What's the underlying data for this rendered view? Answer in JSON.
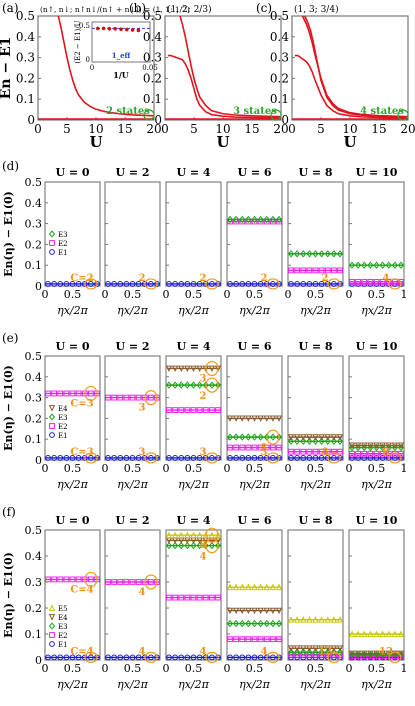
{
  "figure": {
    "rows": [
      {
        "panels": [
          "a",
          "b",
          "c"
        ]
      },
      {
        "panels": [
          "d"
        ]
      },
      {
        "panels": [
          "e"
        ]
      },
      {
        "panels": [
          "f"
        ]
      }
    ]
  },
  "colors": {
    "curve": "#e0141e",
    "E1": "#1a1acc",
    "E2": "#ee22ee",
    "E3": "#1aa51a",
    "E4": "#8b5a2b",
    "E5": "#c8c800",
    "circle": "#f59b1c",
    "count_label": "#2ba52b",
    "marker_label": "#f29318",
    "inset_point": "#cc1111",
    "inset_line": "#2244dd"
  },
  "chart_data": [
    {
      "panel": "a",
      "type": "line",
      "label": "(a)",
      "title": "(n↑, n↓; n↑n↓/(n↑ + n↓)) = (1, 1; 1/2)",
      "xlabel": "U",
      "ylabel": "En − E1",
      "xlim": [
        0,
        20
      ],
      "ylim": [
        0,
        0.5
      ],
      "xticks": [
        "0",
        "5",
        "10",
        "15",
        "20"
      ],
      "yticks": [
        "0",
        "0.1",
        "0.2",
        "0.3",
        "0.4",
        "0.5"
      ],
      "annotation": "2 states",
      "series": [
        {
          "x": [
            3.5,
            4.0,
            4.5,
            5.0,
            5.5,
            6.0,
            6.5,
            7.0,
            8.0,
            9.0,
            10.0,
            11.0,
            12.0,
            14.0,
            16.0,
            20.0
          ],
          "y": [
            0.5,
            0.44,
            0.37,
            0.3,
            0.24,
            0.19,
            0.15,
            0.12,
            0.085,
            0.065,
            0.052,
            0.044,
            0.038,
            0.03,
            0.025,
            0.02
          ]
        }
      ],
      "inset": {
        "xlabel": "1/U",
        "ylabel": "(E2 − E1)/U",
        "xlim": [
          0,
          0.05
        ],
        "ylim": [
          0,
          0.5
        ],
        "xticks": [
          "0",
          "0.05"
        ],
        "yticks": [
          "0",
          "0.5"
        ],
        "line_value": 0.42,
        "line_label": "1_eff",
        "x": [
          0.005,
          0.01,
          0.015,
          0.02,
          0.025,
          0.03,
          0.035,
          0.04
        ],
        "y": [
          0.42,
          0.42,
          0.415,
          0.415,
          0.41,
          0.405,
          0.4,
          0.395
        ]
      }
    },
    {
      "panel": "b",
      "type": "line",
      "label": "(b)",
      "title": "(1, 2; 2/3)",
      "xlabel": "U",
      "xlim": [
        0,
        20
      ],
      "ylim": [
        0,
        0.5
      ],
      "xticks": [
        "0",
        "5",
        "10",
        "15",
        "20"
      ],
      "yticks": [
        "0",
        "0.1",
        "0.2",
        "0.3",
        "0.4",
        "0.5"
      ],
      "annotation": "3 states",
      "series": [
        {
          "x": [
            2.6,
            3.0,
            3.5,
            4.0,
            4.5,
            5.0,
            5.5,
            6.0,
            7.0,
            8.0,
            10.0,
            12.0,
            15.0,
            20.0
          ],
          "y": [
            0.5,
            0.46,
            0.4,
            0.33,
            0.26,
            0.2,
            0.15,
            0.11,
            0.07,
            0.045,
            0.03,
            0.024,
            0.02,
            0.016
          ]
        },
        {
          "x": [
            0.5,
            1.0,
            2.0,
            3.0,
            3.5,
            4.0,
            4.5,
            5.0,
            5.5,
            6.0,
            7.0,
            8.0,
            10.0,
            12.0,
            15.0,
            20.0
          ],
          "y": [
            0.31,
            0.31,
            0.3,
            0.29,
            0.27,
            0.24,
            0.2,
            0.15,
            0.1,
            0.07,
            0.04,
            0.026,
            0.018,
            0.014,
            0.012,
            0.01
          ]
        }
      ]
    },
    {
      "panel": "c",
      "type": "line",
      "label": "(c)",
      "title": "(1, 3; 3/4)",
      "xlabel": "U",
      "xlim": [
        0,
        20
      ],
      "ylim": [
        0,
        0.5
      ],
      "xticks": [
        "0",
        "5",
        "10",
        "15",
        "20"
      ],
      "yticks": [
        "0",
        "0.1",
        "0.2",
        "0.3",
        "0.4",
        "0.5"
      ],
      "annotation": "4 states",
      "series": [
        {
          "x": [
            1.8,
            2.5,
            3.0,
            3.5,
            4.0,
            5.0,
            6.0,
            7.0,
            8.0,
            10.0,
            12.0,
            15.0,
            20.0
          ],
          "y": [
            0.5,
            0.46,
            0.42,
            0.37,
            0.31,
            0.2,
            0.12,
            0.08,
            0.055,
            0.035,
            0.027,
            0.021,
            0.016
          ]
        },
        {
          "x": [
            2.2,
            2.7,
            3.2,
            3.7,
            4.2,
            5.0,
            6.0,
            7.0,
            8.0,
            10.0,
            12.0,
            15.0,
            20.0
          ],
          "y": [
            0.5,
            0.47,
            0.43,
            0.37,
            0.3,
            0.19,
            0.11,
            0.07,
            0.048,
            0.03,
            0.023,
            0.018,
            0.014
          ]
        },
        {
          "x": [
            0.5,
            1.0,
            1.5,
            2.0,
            2.5,
            3.0,
            3.5,
            4.0,
            5.0,
            6.0,
            7.0,
            8.0,
            10.0,
            12.0,
            15.0,
            20.0
          ],
          "y": [
            0.31,
            0.31,
            0.3,
            0.29,
            0.28,
            0.26,
            0.23,
            0.19,
            0.12,
            0.07,
            0.045,
            0.03,
            0.02,
            0.015,
            0.012,
            0.01
          ]
        }
      ]
    },
    {
      "panel": "d",
      "type": "line",
      "label": "(d)",
      "ylabel": "En(η) − E1(0)",
      "xlabel": "ηx/2π",
      "ylim": [
        0,
        0.5
      ],
      "yticks": [
        "0",
        "0.1",
        "0.2",
        "0.3",
        "0.4",
        "0.5"
      ],
      "xticks": [
        "0",
        "0.5",
        "1"
      ],
      "legend": [
        "E3",
        "E2",
        "E1"
      ],
      "subpanels": [
        {
          "title": "U = 0",
          "levels": {
            "E1": 0.01,
            "E2": null,
            "E3": null
          },
          "chern": "C=2"
        },
        {
          "title": "U = 2",
          "levels": {
            "E1": 0.01,
            "E2": null,
            "E3": null
          },
          "chern": "2"
        },
        {
          "title": "U = 4",
          "levels": {
            "E1": 0.01,
            "E2": null,
            "E3": null
          },
          "chern": "2"
        },
        {
          "title": "U = 6",
          "levels": {
            "E1": 0.01,
            "E2": 0.31,
            "E3": 0.32
          },
          "chern": "2"
        },
        {
          "title": "U = 8",
          "levels": {
            "E1": 0.01,
            "E2": 0.075,
            "E3": 0.155
          },
          "chern": "2"
        },
        {
          "title": "U = 10",
          "levels": {
            "E1": 0.01,
            "E2": 0.02,
            "E3": 0.1
          },
          "chern": "4"
        }
      ]
    },
    {
      "panel": "e",
      "type": "line",
      "label": "(e)",
      "ylabel": "En(η) − E1(0)",
      "xlabel": "ηx/2π",
      "ylim": [
        0,
        0.5
      ],
      "yticks": [
        "0",
        "0.1",
        "0.2",
        "0.3",
        "0.4",
        "0.5"
      ],
      "xticks": [
        "0",
        "0.5",
        "1"
      ],
      "legend": [
        "E4",
        "E3",
        "E2",
        "E1"
      ],
      "subpanels": [
        {
          "title": "U = 0",
          "levels": {
            "E1": 0.01,
            "E2": 0.32,
            "E3": null,
            "E4": null
          },
          "chern_top": "C=3",
          "chern": "C=3"
        },
        {
          "title": "U = 2",
          "levels": {
            "E1": 0.01,
            "E2": 0.3,
            "E3": null,
            "E4": null
          },
          "chern_top": "3",
          "chern": "3"
        },
        {
          "title": "U = 4",
          "levels": {
            "E1": 0.01,
            "E2": 0.24,
            "E3": 0.36,
            "E4": 0.44
          },
          "chern_top": "3",
          "chern_mid": "2",
          "chern": "3"
        },
        {
          "title": "U = 6",
          "levels": {
            "E1": 0.01,
            "E2": 0.06,
            "E3": 0.11,
            "E4": 0.2
          },
          "chern_mid": "5",
          "chern": "3"
        },
        {
          "title": "U = 8",
          "levels": {
            "E1": 0.01,
            "E2": 0.04,
            "E3": 0.09,
            "E4": 0.11
          },
          "chern": "8"
        },
        {
          "title": "U = 10",
          "levels": {
            "E1": 0.01,
            "E2": 0.03,
            "E3": 0.06,
            "E4": 0.07
          },
          "chern": "8"
        }
      ]
    },
    {
      "panel": "f",
      "type": "line",
      "label": "(f)",
      "ylabel": "En(η) − E1(0)",
      "xlabel": "ηx/2π",
      "ylim": [
        0,
        0.5
      ],
      "yticks": [
        "0",
        "0.1",
        "0.2",
        "0.3",
        "0.4",
        "0.5"
      ],
      "xticks": [
        "0",
        "0.5",
        "1"
      ],
      "legend": [
        "E5",
        "E4",
        "E3",
        "E2",
        "E1"
      ],
      "subpanels": [
        {
          "title": "U = 0",
          "levels": {
            "E1": 0.01,
            "E2": 0.31,
            "E3": null,
            "E4": null,
            "E5": null
          },
          "chern_top": "C=4",
          "chern": "C=4"
        },
        {
          "title": "U = 2",
          "levels": {
            "E1": 0.01,
            "E2": 0.3,
            "E3": null,
            "E4": null,
            "E5": null
          },
          "chern_top": "4",
          "chern": "4"
        },
        {
          "title": "U = 4",
          "levels": {
            "E1": 0.01,
            "E2": 0.24,
            "E3": 0.44,
            "E4": 0.46,
            "E5": 0.48
          },
          "chern_top": "8",
          "chern_mid": "4",
          "chern": "4"
        },
        {
          "title": "U = 6",
          "levels": {
            "E1": 0.01,
            "E2": 0.08,
            "E3": 0.14,
            "E4": 0.19,
            "E5": 0.28
          },
          "chern": "4"
        },
        {
          "title": "U = 8",
          "levels": {
            "E1": 0.01,
            "E2": 0.02,
            "E3": 0.03,
            "E4": 0.045,
            "E5": 0.155
          },
          "chern": "12"
        },
        {
          "title": "U = 10",
          "levels": {
            "E1": 0.01,
            "E2": 0.015,
            "E3": 0.02,
            "E4": 0.025,
            "E5": 0.1
          },
          "chern": "12"
        }
      ]
    }
  ]
}
